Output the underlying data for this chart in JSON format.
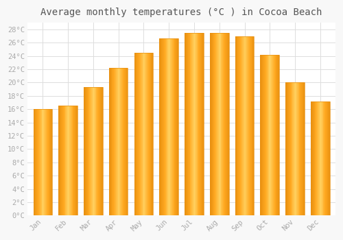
{
  "title": "Average monthly temperatures (°C ) in Cocoa Beach",
  "months": [
    "Jan",
    "Feb",
    "Mar",
    "Apr",
    "May",
    "Jun",
    "Jul",
    "Aug",
    "Sep",
    "Oct",
    "Nov",
    "Dec"
  ],
  "values": [
    16.0,
    16.5,
    19.3,
    22.2,
    24.5,
    26.7,
    27.5,
    27.5,
    27.0,
    24.2,
    20.1,
    17.2
  ],
  "bar_color_main": "#FFA820",
  "bar_color_edge": "#E89010",
  "bar_color_light": "#FFD060",
  "background_color": "#F8F8F8",
  "plot_bg_color": "#FFFFFF",
  "grid_color": "#DDDDDD",
  "ylim": [
    0,
    29
  ],
  "title_fontsize": 10,
  "tick_label_color": "#AAAAAA",
  "title_color": "#555555",
  "font_family": "monospace",
  "bar_width": 0.75
}
